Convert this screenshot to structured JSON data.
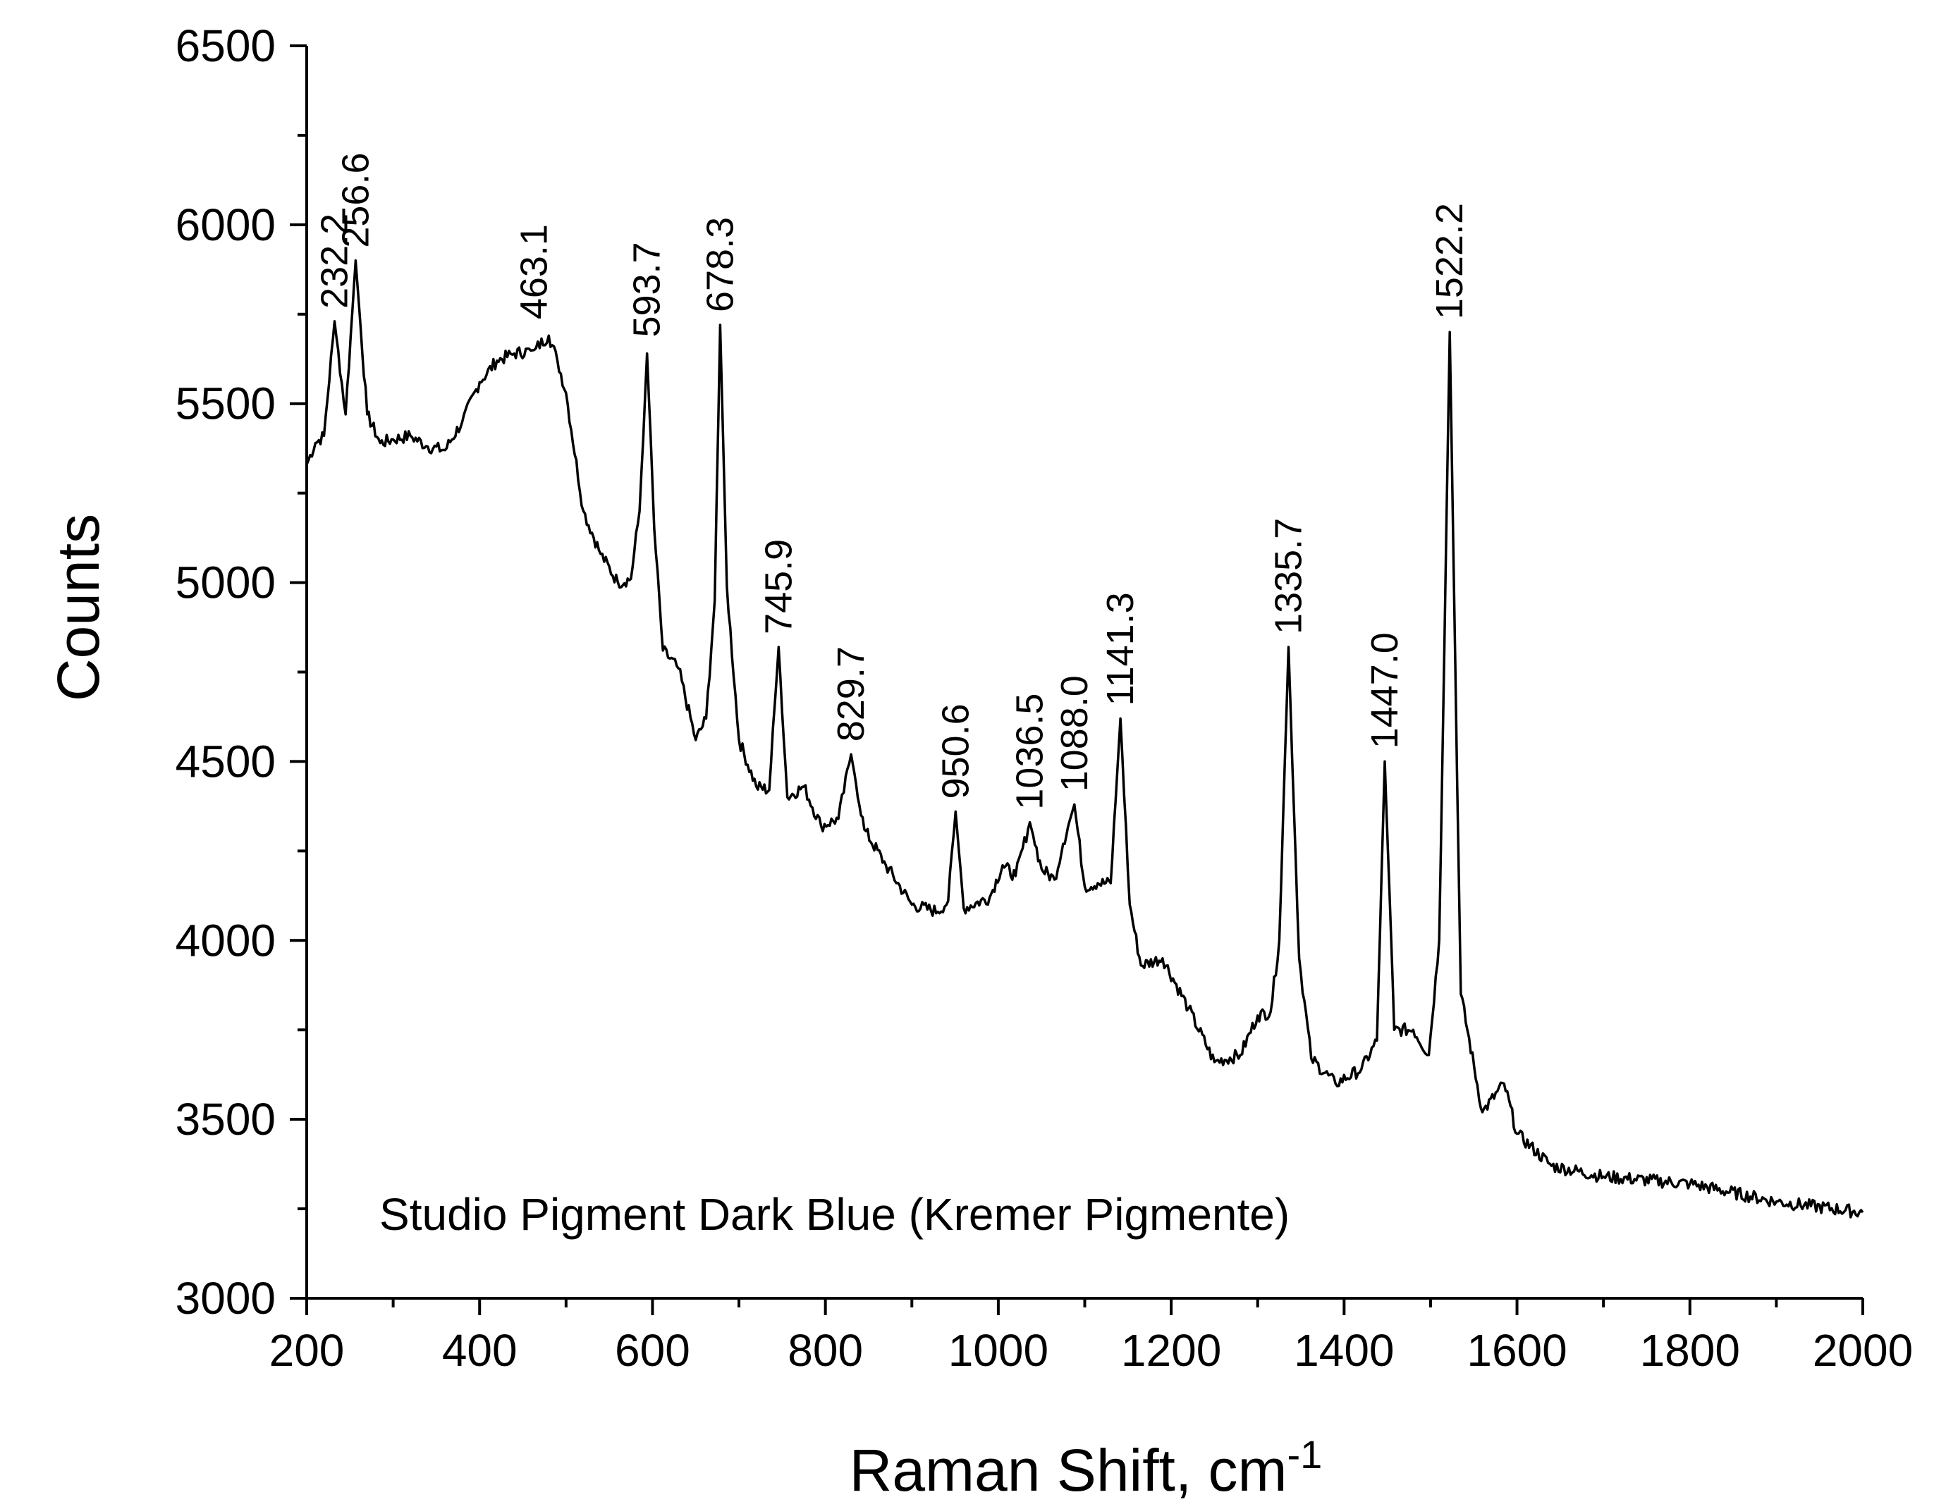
{
  "chart_data": {
    "type": "line",
    "xlabel": "Raman Shift, cm",
    "xlabel_superscript": "-1",
    "ylabel": "Counts",
    "xlim": [
      200,
      2000
    ],
    "ylim": [
      3000,
      6500
    ],
    "x_ticks": [
      "200",
      "400",
      "600",
      "800",
      "1000",
      "1200",
      "1400",
      "1600",
      "1800",
      "2000"
    ],
    "y_ticks": [
      "3000",
      "3500",
      "4000",
      "4500",
      "5000",
      "5500",
      "6000",
      "6500"
    ],
    "grid": false,
    "annotation": "Studio Pigment Dark Blue (Kremer Pigmente)",
    "series": [
      {
        "color": "#000000",
        "x": [
          200,
          210,
          220,
          232.2,
          245,
          256.6,
          270,
          285,
          300,
          320,
          340,
          360,
          380,
          400,
          420,
          440,
          463.1,
          480,
          490,
          500,
          520,
          540,
          560,
          575,
          585,
          593.7,
          602,
          612,
          630,
          650,
          662,
          672,
          678.3,
          686,
          700,
          720,
          735,
          745.9,
          756,
          775,
          795,
          815,
          829.7,
          845,
          870,
          900,
          930,
          942,
          950.6,
          960,
          990,
          1005,
          1020,
          1036.5,
          1050,
          1065,
          1075,
          1088.0,
          1100,
          1115,
          1130,
          1141.3,
          1152,
          1165,
          1190,
          1220,
          1250,
          1280,
          1300,
          1315,
          1325,
          1335.7,
          1348,
          1362,
          1390,
          1420,
          1438,
          1447.0,
          1458,
          1480,
          1498,
          1510,
          1522.2,
          1535,
          1560,
          1585,
          1600,
          1640,
          1700,
          1800,
          1900,
          2000
        ],
        "y": [
          5330,
          5390,
          5410,
          5730,
          5470,
          5900,
          5470,
          5390,
          5400,
          5410,
          5380,
          5370,
          5450,
          5560,
          5620,
          5640,
          5650,
          5690,
          5620,
          5530,
          5200,
          5080,
          5000,
          5010,
          5200,
          5640,
          5150,
          4810,
          4760,
          4560,
          4620,
          4950,
          5720,
          4990,
          4560,
          4430,
          4420,
          4820,
          4400,
          4430,
          4320,
          4340,
          4520,
          4310,
          4210,
          4100,
          4080,
          4110,
          4360,
          4090,
          4120,
          4210,
          4180,
          4330,
          4200,
          4170,
          4270,
          4380,
          4150,
          4160,
          4160,
          4620,
          4100,
          3930,
          3950,
          3810,
          3660,
          3680,
          3790,
          3800,
          4000,
          4820,
          3950,
          3670,
          3600,
          3640,
          3720,
          4500,
          3750,
          3750,
          3680,
          4000,
          5700,
          3850,
          3520,
          3600,
          3460,
          3370,
          3340,
          3320,
          3270,
          3240
        ]
      }
    ],
    "peak_labels": [
      {
        "x": 232.2,
        "y": 5730,
        "label": "232.2"
      },
      {
        "x": 256.6,
        "y": 5900,
        "label": "256.6"
      },
      {
        "x": 463.1,
        "y": 5700,
        "label": "463.1"
      },
      {
        "x": 593.7,
        "y": 5650,
        "label": "593.7"
      },
      {
        "x": 678.3,
        "y": 5720,
        "label": "678.3"
      },
      {
        "x": 745.9,
        "y": 4820,
        "label": "745.9"
      },
      {
        "x": 829.7,
        "y": 4520,
        "label": "829.7"
      },
      {
        "x": 950.6,
        "y": 4360,
        "label": "950.6"
      },
      {
        "x": 1036.5,
        "y": 4330,
        "label": "1036.5"
      },
      {
        "x": 1088.0,
        "y": 4380,
        "label": "1088.0"
      },
      {
        "x": 1141.3,
        "y": 4620,
        "label": "1141.3"
      },
      {
        "x": 1335.7,
        "y": 4820,
        "label": "1335.7"
      },
      {
        "x": 1447.0,
        "y": 4500,
        "label": "1447.0"
      },
      {
        "x": 1522.2,
        "y": 5700,
        "label": "1522.2"
      }
    ]
  }
}
